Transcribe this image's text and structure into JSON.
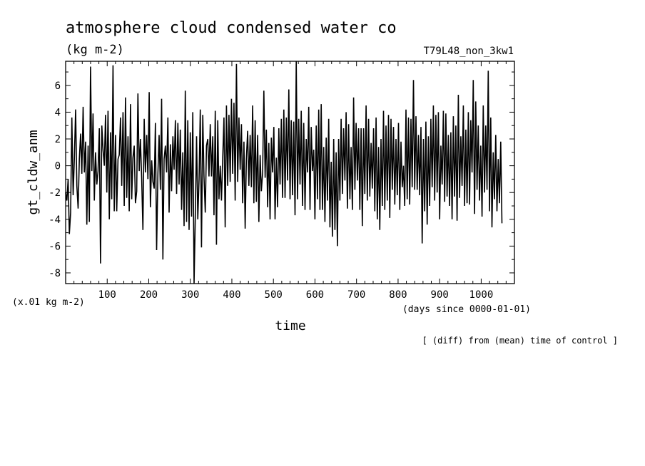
{
  "chart_data": {
    "type": "line",
    "title": "atmosphere cloud condensed water co",
    "units": "(kg m-2)",
    "run_label": "T79L48_non_3kw1",
    "ylabel": "gt_cldw_anm",
    "y_scale_note": "(x.01 kg m-2)",
    "xlabel": "time",
    "x_units": "(days since 0000-01-01)",
    "footnote": "[ (diff) from (mean) time of control ]",
    "xlim": [
      0,
      1080
    ],
    "ylim": [
      -8.8,
      7.8
    ],
    "xticks": [
      100,
      200,
      300,
      400,
      500,
      600,
      700,
      800,
      900,
      1000
    ],
    "yticks": [
      -8,
      -6,
      -4,
      -2,
      0,
      2,
      4,
      6
    ],
    "xtick_labels": [
      "100",
      "200",
      "300",
      "400",
      "500",
      "600",
      "700",
      "800",
      "900",
      "1000"
    ],
    "ytick_labels": [
      "-8",
      "-6",
      "-4",
      "-2",
      "0",
      "2",
      "4",
      "6"
    ],
    "series": [
      {
        "x_start": 0,
        "x_step": 3,
        "values": [
          -2.0,
          -2.6,
          -1.0,
          -5.1,
          -3.5,
          3.6,
          -2.2,
          0.5,
          4.2,
          -1.5,
          -3.2,
          0.5,
          2.4,
          -0.6,
          4.4,
          -0.5,
          1.8,
          -4.4,
          1.5,
          -4.2,
          7.4,
          -0.4,
          3.9,
          -2.6,
          1.0,
          -1.4,
          -0.4,
          2.8,
          -7.3,
          3.0,
          1.2,
          0.0,
          3.8,
          -2.0,
          4.1,
          -4.0,
          2.5,
          -2.5,
          7.5,
          -3.4,
          2.3,
          -3.4,
          0.5,
          0.8,
          3.6,
          -1.5,
          4.0,
          -3.0,
          5.1,
          -2.4,
          2.2,
          -3.4,
          4.6,
          -2.5,
          0.6,
          1.5,
          -2.8,
          -1.9,
          5.4,
          -0.4,
          2.0,
          -1.0,
          -4.8,
          3.5,
          -0.5,
          2.3,
          -1.0,
          5.5,
          -3.1,
          0.4,
          -1.2,
          -1.7,
          3.2,
          -6.3,
          -0.6,
          2.3,
          -1.8,
          5.0,
          -7.0,
          0.5,
          1.5,
          -0.5,
          3.6,
          -3.5,
          1.6,
          -1.9,
          2.2,
          -0.3,
          3.4,
          -2.1,
          3.2,
          -1.4,
          2.7,
          -3.3,
          1.0,
          -4.5,
          5.6,
          -4.2,
          3.4,
          -4.8,
          2.5,
          -3.8,
          4.0,
          -8.8,
          -3.9,
          2.2,
          -4.0,
          -1.0,
          4.2,
          -6.1,
          3.8,
          -0.8,
          -3.5,
          1.5,
          2.0,
          -0.8,
          3.1,
          -0.8,
          2.2,
          -3.7,
          4.1,
          -5.9,
          3.4,
          -2.5,
          0.0,
          -2.6,
          0.5,
          3.6,
          -4.6,
          4.5,
          -1.5,
          3.8,
          -1.2,
          5.0,
          -0.6,
          4.7,
          -2.6,
          7.6,
          -1.2,
          3.6,
          -0.3,
          3.1,
          -2.8,
          1.8,
          -4.7,
          0.5,
          2.6,
          -1.5,
          2.3,
          -1.6,
          4.5,
          -2.8,
          3.4,
          -2.7,
          2.3,
          -4.2,
          0.8,
          -1.9,
          -0.5,
          5.6,
          -0.9,
          2.7,
          -3.1,
          1.7,
          -4.0,
          2.1,
          -0.5,
          2.9,
          -4.0,
          0.6,
          -3.1,
          2.8,
          -1.4,
          3.5,
          -2.4,
          4.2,
          -2.4,
          3.6,
          -1.1,
          5.7,
          -2.5,
          3.4,
          -2.2,
          3.3,
          -3.7,
          7.8,
          -2.5,
          3.5,
          -1.4,
          4.1,
          -3.0,
          3.2,
          -3.3,
          2.0,
          -0.5,
          4.4,
          -3.3,
          2.9,
          -0.4,
          1.2,
          -4.0,
          3.0,
          -2.5,
          4.2,
          -3.3,
          4.6,
          -3.3,
          1.4,
          -4.2,
          2.1,
          -2.6,
          3.5,
          -4.6,
          0.3,
          -5.3,
          2.0,
          -4.8,
          1.0,
          -6.0,
          2.0,
          -2.6,
          3.5,
          -2.1,
          2.8,
          -1.1,
          4.0,
          -3.2,
          3.1,
          -2.5,
          1.4,
          -3.3,
          5.1,
          -1.8,
          3.2,
          -1.1,
          2.8,
          -3.3,
          2.8,
          -4.5,
          2.8,
          -2.1,
          4.5,
          -2.6,
          3.5,
          -2.3,
          1.7,
          -1.7,
          2.8,
          -3.4,
          3.6,
          -4.0,
          1.4,
          -4.8,
          2.0,
          -3.0,
          4.1,
          -3.3,
          3.0,
          -2.6,
          3.8,
          -3.9,
          3.5,
          -1.8,
          2.9,
          -2.9,
          2.0,
          -2.2,
          3.2,
          -3.3,
          1.8,
          -1.6,
          0.0,
          -3.0,
          4.2,
          -2.5,
          3.6,
          -2.9,
          3.5,
          -1.6,
          6.4,
          -1.8,
          3.7,
          -1.8,
          2.3,
          -2.2,
          2.9,
          -5.8,
          2.0,
          -3.4,
          3.3,
          -4.4,
          2.2,
          -3.0,
          3.5,
          -1.6,
          4.5,
          -2.6,
          3.8,
          -2.0,
          4.0,
          -4.0,
          1.5,
          -1.4,
          4.1,
          -2.7,
          3.9,
          -2.3,
          2.3,
          -3.0,
          2.5,
          -4.0,
          3.7,
          -2.3,
          3.0,
          -4.1,
          5.3,
          -2.4,
          2.2,
          -1.5,
          4.5,
          -3.0,
          2.7,
          -2.8,
          4.0,
          -2.9,
          3.4,
          -0.5,
          6.4,
          -3.6,
          4.8,
          -1.8,
          3.0,
          -2.6,
          1.5,
          -3.8,
          4.5,
          -2.0,
          3.0,
          -1.8,
          7.1,
          -3.4,
          3.6,
          -4.6,
          1.0,
          -2.5,
          2.3,
          -3.4,
          0.5,
          -2.8,
          1.8,
          -4.3
        ]
      }
    ]
  }
}
